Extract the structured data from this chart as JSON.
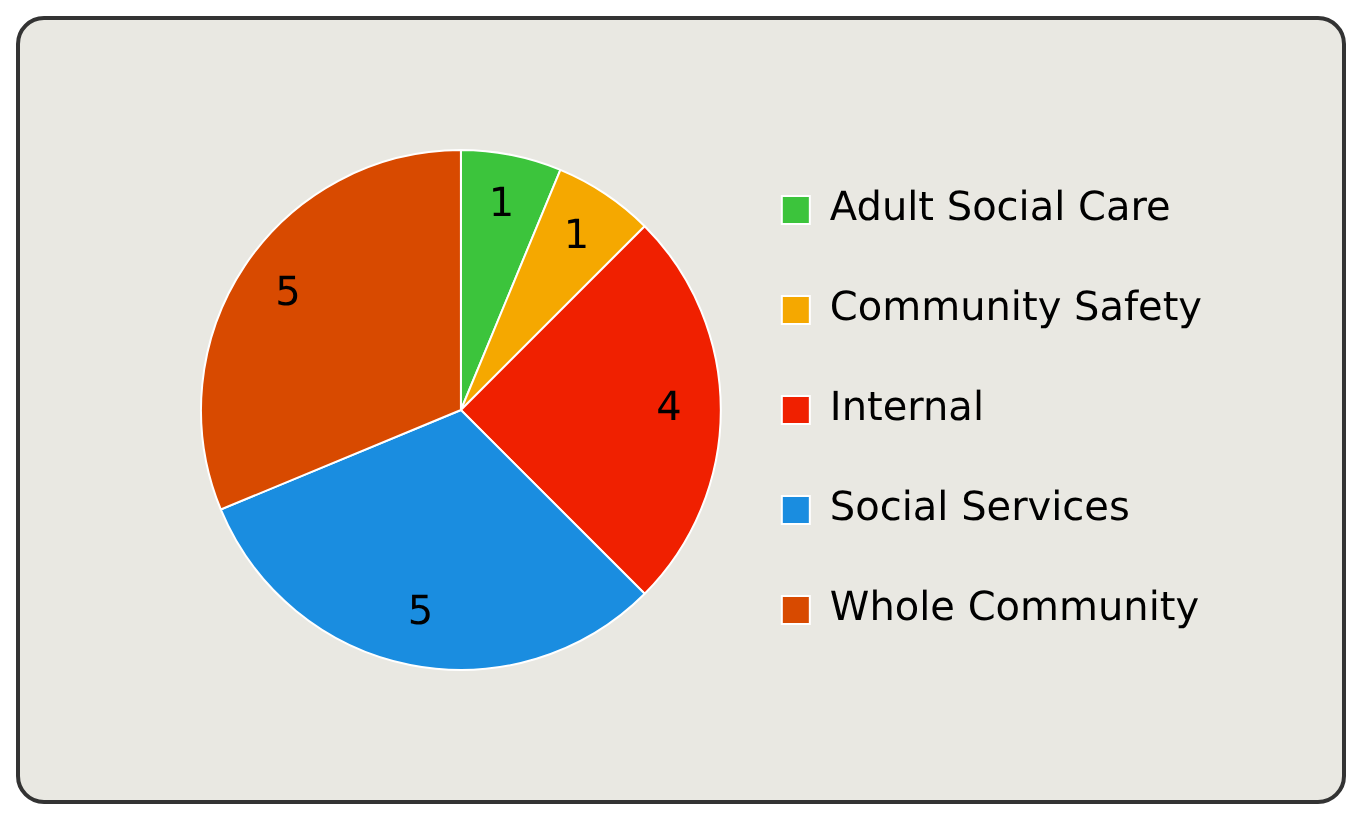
{
  "chart_data": {
    "type": "pie",
    "categories": [
      "Adult Social Care",
      "Community Safety",
      "Internal",
      "Social Services",
      "Whole Community"
    ],
    "values": [
      1,
      1,
      4,
      5,
      5
    ],
    "colors": [
      "#3cc43c",
      "#f5a800",
      "#f02000",
      "#1a8de0",
      "#d84a00"
    ],
    "legend": "right",
    "data_labels": true
  }
}
